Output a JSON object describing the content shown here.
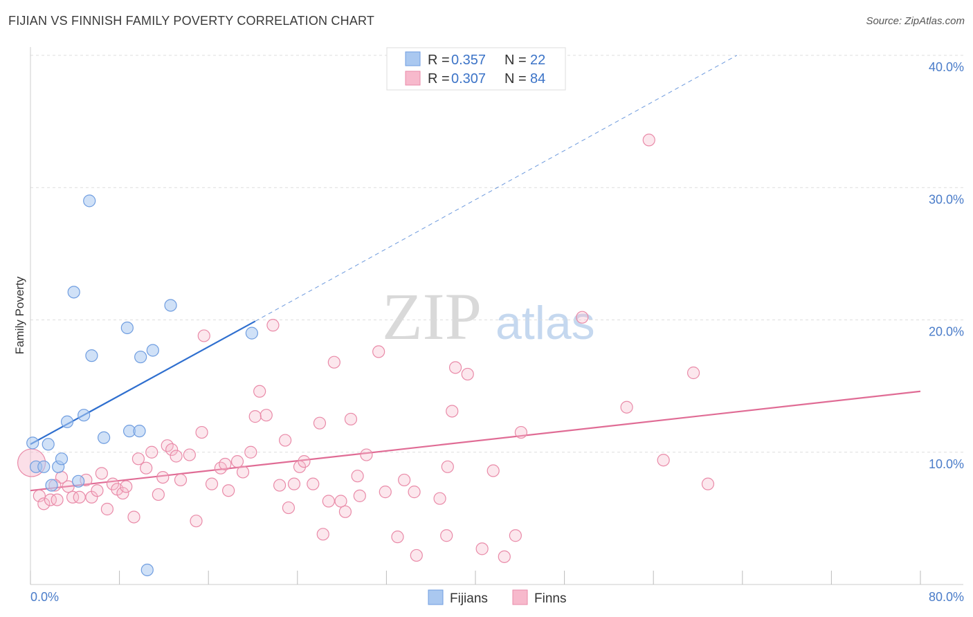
{
  "header": {
    "title": "FIJIAN VS FINNISH FAMILY POVERTY CORRELATION CHART",
    "source": "Source: ZipAtlas.com"
  },
  "watermark": {
    "zip": "ZIP",
    "atlas": "atlas"
  },
  "legend": {
    "fijians": {
      "r_label": "R =",
      "r_value": "0.357",
      "n_label": "N =",
      "n_value": "22"
    },
    "finns": {
      "r_label": "R =",
      "r_value": "0.307",
      "n_label": "N =",
      "n_value": "84"
    }
  },
  "bottom_legend": {
    "fijians": "Fijians",
    "finns": "Finns"
  },
  "colors": {
    "fijians_fill": "#aac8f0",
    "fijians_stroke": "#6f9de0",
    "fijians_line": "#2f6fcf",
    "finns_fill": "#f7b9cc",
    "finns_stroke": "#e98aa8",
    "finns_line": "#e06c95",
    "grid": "#dddddd",
    "axis_label": "#4a7cc9"
  },
  "chart_data": {
    "type": "scatter",
    "title": "FIJIAN VS FINNISH FAMILY POVERTY CORRELATION CHART",
    "xlabel": "",
    "ylabel": "Family Poverty",
    "xlim": [
      0,
      80
    ],
    "ylim": [
      0,
      40
    ],
    "x_tick_labels": [
      "0.0%",
      "80.0%"
    ],
    "y_ticks": [
      10,
      20,
      30,
      40
    ],
    "y_tick_labels": [
      "10.0%",
      "20.0%",
      "30.0%",
      "40.0%"
    ],
    "grid": true,
    "series": [
      {
        "name": "Fijians",
        "trend": {
          "x0": 0,
          "y0": 10.6,
          "x1": 20.2,
          "y1": 19.9,
          "dashed_to_x": 63.5,
          "dashed_to_y": 40.0
        },
        "points": [
          [
            0.2,
            10.7
          ],
          [
            0.5,
            8.9
          ],
          [
            1.2,
            8.9
          ],
          [
            1.6,
            10.6
          ],
          [
            1.9,
            7.5
          ],
          [
            2.5,
            8.9
          ],
          [
            2.8,
            9.5
          ],
          [
            3.3,
            12.3
          ],
          [
            4.3,
            7.8
          ],
          [
            4.8,
            12.8
          ],
          [
            5.3,
            29.0
          ],
          [
            3.9,
            22.1
          ],
          [
            5.5,
            17.3
          ],
          [
            6.6,
            11.1
          ],
          [
            8.9,
            11.6
          ],
          [
            8.7,
            19.4
          ],
          [
            9.8,
            11.6
          ],
          [
            9.9,
            17.2
          ],
          [
            11.0,
            17.7
          ],
          [
            12.6,
            21.1
          ],
          [
            19.9,
            19.0
          ],
          [
            10.5,
            1.1
          ]
        ]
      },
      {
        "name": "Finns",
        "trend": {
          "x0": 0,
          "y0": 7.1,
          "x1": 80,
          "y1": 14.6
        },
        "points": [
          [
            0.1,
            9.2
          ],
          [
            0.8,
            6.7
          ],
          [
            1.2,
            6.1
          ],
          [
            1.8,
            6.4
          ],
          [
            2.4,
            6.4
          ],
          [
            2.8,
            8.1
          ],
          [
            3.4,
            7.4
          ],
          [
            3.8,
            6.6
          ],
          [
            4.4,
            6.6
          ],
          [
            5.0,
            7.9
          ],
          [
            5.5,
            6.6
          ],
          [
            6.0,
            7.1
          ],
          [
            6.4,
            8.4
          ],
          [
            6.9,
            5.7
          ],
          [
            7.4,
            7.6
          ],
          [
            7.8,
            7.2
          ],
          [
            8.3,
            6.9
          ],
          [
            8.6,
            7.4
          ],
          [
            9.3,
            5.1
          ],
          [
            9.7,
            9.5
          ],
          [
            10.4,
            8.8
          ],
          [
            10.9,
            10.0
          ],
          [
            11.5,
            6.8
          ],
          [
            11.9,
            8.1
          ],
          [
            12.3,
            10.5
          ],
          [
            12.7,
            10.2
          ],
          [
            13.1,
            9.7
          ],
          [
            13.5,
            7.9
          ],
          [
            14.3,
            9.8
          ],
          [
            14.9,
            4.8
          ],
          [
            15.4,
            11.5
          ],
          [
            15.6,
            18.8
          ],
          [
            16.3,
            7.6
          ],
          [
            17.1,
            8.8
          ],
          [
            17.5,
            9.1
          ],
          [
            17.8,
            7.1
          ],
          [
            18.6,
            9.3
          ],
          [
            19.1,
            8.5
          ],
          [
            19.8,
            10.0
          ],
          [
            20.2,
            12.7
          ],
          [
            20.6,
            14.6
          ],
          [
            21.2,
            12.8
          ],
          [
            21.8,
            19.6
          ],
          [
            22.4,
            7.5
          ],
          [
            22.9,
            10.9
          ],
          [
            23.2,
            5.8
          ],
          [
            23.7,
            7.6
          ],
          [
            24.2,
            8.9
          ],
          [
            24.6,
            9.3
          ],
          [
            25.4,
            7.6
          ],
          [
            26.0,
            12.2
          ],
          [
            26.3,
            3.8
          ],
          [
            26.8,
            6.3
          ],
          [
            27.3,
            16.8
          ],
          [
            27.9,
            6.3
          ],
          [
            28.3,
            5.5
          ],
          [
            28.8,
            12.5
          ],
          [
            29.4,
            8.2
          ],
          [
            29.6,
            6.7
          ],
          [
            30.2,
            9.8
          ],
          [
            31.3,
            17.6
          ],
          [
            31.9,
            7.0
          ],
          [
            33.0,
            3.6
          ],
          [
            33.6,
            7.9
          ],
          [
            34.5,
            7.0
          ],
          [
            34.7,
            2.2
          ],
          [
            36.8,
            6.5
          ],
          [
            37.4,
            3.7
          ],
          [
            37.5,
            8.9
          ],
          [
            37.9,
            13.1
          ],
          [
            38.2,
            16.4
          ],
          [
            39.3,
            15.9
          ],
          [
            40.6,
            2.7
          ],
          [
            41.6,
            8.6
          ],
          [
            42.6,
            2.1
          ],
          [
            43.6,
            3.7
          ],
          [
            44.1,
            11.5
          ],
          [
            49.6,
            20.2
          ],
          [
            53.6,
            13.4
          ],
          [
            55.6,
            33.6
          ],
          [
            56.9,
            9.4
          ],
          [
            59.6,
            16.0
          ],
          [
            60.9,
            7.6
          ],
          [
            2.2,
            7.5
          ]
        ]
      }
    ]
  }
}
